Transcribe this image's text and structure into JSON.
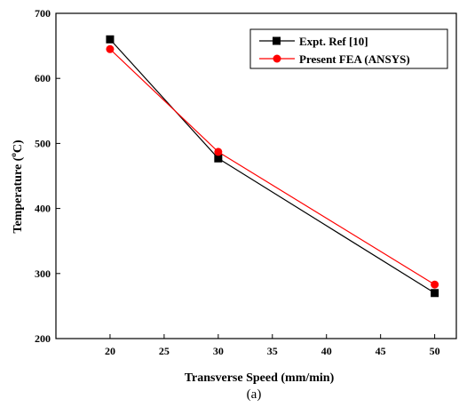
{
  "chart_data": {
    "type": "line",
    "xlabel": "Transverse Speed (mm/min)",
    "ylabel_main": "Temperature (",
    "ylabel_sup": "o",
    "ylabel_unit": "C)",
    "caption": "(a)",
    "xlim": [
      15,
      52
    ],
    "ylim": [
      200,
      700
    ],
    "x_ticks": [
      20,
      25,
      30,
      35,
      40,
      45,
      50
    ],
    "y_ticks": [
      200,
      300,
      400,
      500,
      600,
      700
    ],
    "x": [
      20,
      30,
      50
    ],
    "series": [
      {
        "name": "Expt. Ref [10]",
        "values": [
          660,
          477,
          270
        ],
        "color": "#000000",
        "marker": "square"
      },
      {
        "name": "Present FEA (ANSYS)",
        "values": [
          645,
          487,
          283
        ],
        "color": "#ff0000",
        "marker": "circle"
      }
    ],
    "legend_position": "top-right",
    "grid": false
  }
}
